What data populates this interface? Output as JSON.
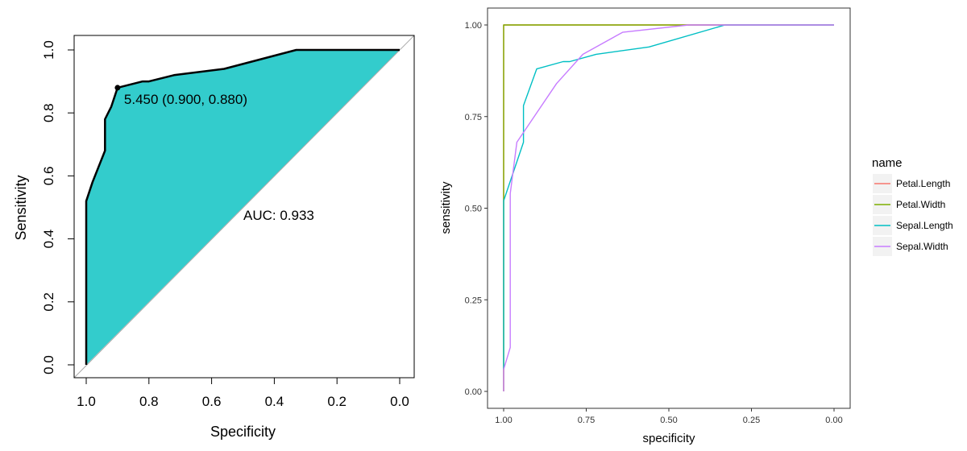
{
  "chart_data": [
    {
      "type": "area",
      "xlabel": "Specificity",
      "ylabel": "Sensitivity",
      "xlim": [
        1.0,
        0.0
      ],
      "ylim": [
        0.0,
        1.0
      ],
      "x_ticks": [
        "1.0",
        "0.8",
        "0.6",
        "0.4",
        "0.2",
        "0.0"
      ],
      "y_ticks": [
        "0.0",
        "0.2",
        "0.4",
        "0.6",
        "0.8",
        "1.0"
      ],
      "fill_color": "#33CCCC",
      "line_color": "#000000",
      "diagonal_color": "#AAAAAA",
      "auc_label": "AUC: 0.933",
      "threshold_label": "5.450 (0.900, 0.880)",
      "threshold_point": {
        "specificity": 0.9,
        "sensitivity": 0.88
      },
      "points": [
        [
          1.0,
          0.0
        ],
        [
          1.0,
          0.52
        ],
        [
          0.98,
          0.58
        ],
        [
          0.94,
          0.68
        ],
        [
          0.94,
          0.78
        ],
        [
          0.92,
          0.82
        ],
        [
          0.9,
          0.88
        ],
        [
          0.82,
          0.9
        ],
        [
          0.8,
          0.9
        ],
        [
          0.72,
          0.92
        ],
        [
          0.56,
          0.94
        ],
        [
          0.33,
          1.0
        ],
        [
          0.0,
          1.0
        ]
      ]
    },
    {
      "type": "line",
      "xlabel": "specificity",
      "ylabel": "sensitivity",
      "xlim": [
        1.0,
        0.0
      ],
      "ylim": [
        0.0,
        1.0
      ],
      "x_ticks": [
        "1.00",
        "0.75",
        "0.50",
        "0.25",
        "0.00"
      ],
      "y_ticks": [
        "0.00",
        "0.25",
        "0.50",
        "0.75",
        "1.00"
      ],
      "grid": false,
      "legend_position": "right",
      "legend_title": "name",
      "series": [
        {
          "name": "Petal.Length",
          "color": "#F8766D",
          "x": [
            1.0,
            1.0,
            0.0
          ],
          "y": [
            0.0,
            1.0,
            1.0
          ]
        },
        {
          "name": "Petal.Width",
          "color": "#7CAE00",
          "x": [
            1.0,
            1.0,
            1.0,
            0.0
          ],
          "y": [
            0.0,
            0.52,
            1.0,
            1.0
          ]
        },
        {
          "name": "Sepal.Length",
          "color": "#00BFC4",
          "x": [
            1.0,
            1.0,
            0.94,
            0.94,
            0.9,
            0.82,
            0.8,
            0.72,
            0.56,
            0.33,
            0.0
          ],
          "y": [
            0.06,
            0.52,
            0.68,
            0.78,
            0.88,
            0.9,
            0.9,
            0.92,
            0.94,
            1.0,
            1.0
          ]
        },
        {
          "name": "Sepal.Width",
          "color": "#C77CFF",
          "x": [
            1.0,
            1.0,
            0.98,
            0.98,
            0.96,
            0.84,
            0.76,
            0.64,
            0.44,
            0.32,
            0.0
          ],
          "y": [
            0.0,
            0.06,
            0.12,
            0.54,
            0.68,
            0.84,
            0.92,
            0.98,
            1.0,
            1.0,
            1.0
          ]
        }
      ]
    }
  ]
}
